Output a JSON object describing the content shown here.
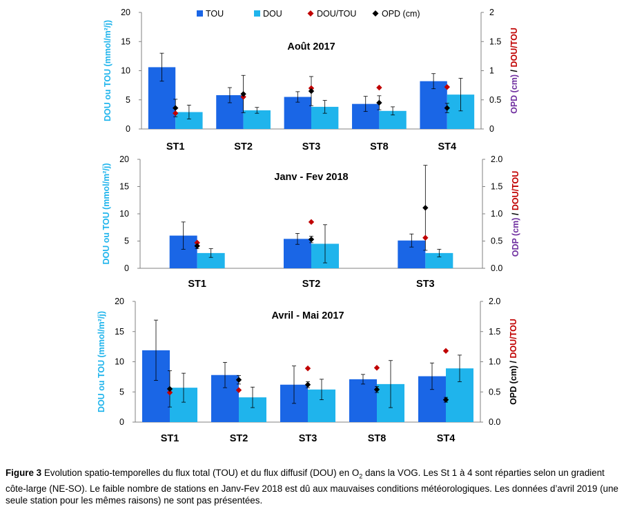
{
  "legend": [
    {
      "label": "TOU",
      "kind": "bar",
      "color": "#1a66e6"
    },
    {
      "label": "DOU",
      "kind": "bar",
      "color": "#1fb4ec"
    },
    {
      "label": "DOU/TOU",
      "kind": "diamond",
      "color": "#c00000"
    },
    {
      "label": "OPD (cm)",
      "kind": "diamond",
      "color": "#000000"
    }
  ],
  "chart_data": [
    {
      "type": "bar",
      "title": "Août  2017",
      "categories": [
        "ST1",
        "ST2",
        "ST3",
        "ST8",
        "ST4"
      ],
      "ylim": [
        0,
        20
      ],
      "y_ticks": [
        "0",
        "5",
        "10",
        "15",
        "20"
      ],
      "y2lim": [
        0,
        2
      ],
      "y2_ticks": [
        "0",
        "0.5",
        "1",
        "1.5",
        "2"
      ],
      "ylabel": {
        "blue1": "DOU",
        "mid": " ou ",
        "blue2": "TOU",
        "rest": " (mmol/m²/j)"
      },
      "y2label": {
        "purple": "OPD (cm)",
        "sep": "   /   ",
        "red": "DOU/TOU"
      },
      "series": [
        {
          "name": "TOU",
          "values": [
            10.6,
            5.8,
            5.5,
            4.3,
            8.2
          ],
          "errors": [
            2.4,
            1.3,
            0.9,
            1.3,
            1.3
          ]
        },
        {
          "name": "DOU",
          "values": [
            2.9,
            3.2,
            3.8,
            3.1,
            5.9
          ],
          "errors": [
            1.2,
            0.5,
            1.1,
            0.7,
            2.8
          ]
        },
        {
          "name": "DOU/TOU",
          "axis": "right",
          "values": [
            0.27,
            0.55,
            0.7,
            0.71,
            0.72
          ]
        },
        {
          "name": "OPD (cm)",
          "axis": "right",
          "values": [
            0.36,
            0.6,
            0.65,
            0.45,
            0.36
          ],
          "errors": [
            0.15,
            0.32,
            0.25,
            0.12,
            0.08
          ]
        }
      ]
    },
    {
      "type": "bar",
      "title": "Janv - Fev 2018",
      "categories": [
        "ST1",
        "ST2",
        "ST3"
      ],
      "ylim": [
        0,
        20
      ],
      "y_ticks": [
        "0",
        "5",
        "10",
        "15",
        "20"
      ],
      "y2lim": [
        0,
        2
      ],
      "y2_ticks": [
        "0.0",
        "0.5",
        "1.0",
        "1.5",
        "2.0"
      ],
      "ylabel": {
        "blue1": "DOU",
        "mid": " ou ",
        "blue2": "TOU",
        "rest": " (mmol/m²/j)"
      },
      "y2label": {
        "purple": "ODP (cm)",
        "sep": "   /   ",
        "red": "DOU/TOU"
      },
      "series": [
        {
          "name": "TOU",
          "values": [
            6.0,
            5.4,
            5.1
          ],
          "errors": [
            2.5,
            1.0,
            1.2
          ]
        },
        {
          "name": "DOU",
          "values": [
            2.8,
            4.5,
            2.8
          ],
          "errors": [
            0.8,
            3.5,
            0.7
          ]
        },
        {
          "name": "DOU/TOU",
          "axis": "right",
          "values": [
            0.47,
            0.85,
            0.56
          ]
        },
        {
          "name": "OPD (cm)",
          "axis": "right",
          "values": [
            0.41,
            0.53,
            1.11
          ],
          "errors": [
            0.05,
            0.06,
            0.78
          ]
        }
      ]
    },
    {
      "type": "bar",
      "title": "Avril - Mai  2017",
      "categories": [
        "ST1",
        "ST2",
        "ST3",
        "ST8",
        "ST4"
      ],
      "ylim": [
        0,
        20
      ],
      "y_ticks": [
        "0",
        "5",
        "10",
        "15",
        "20"
      ],
      "y2lim": [
        0,
        2
      ],
      "y2_ticks": [
        "0.0",
        "0.5",
        "1.0",
        "1.5",
        "2.0"
      ],
      "ylabel": {
        "blue1": "DOU",
        "mid": " ou ",
        "blue2": "TOU",
        "rest": " (mmol/m²/j)"
      },
      "y2label": {
        "black": "OPD (cm) / ",
        "red": "DOU/TOU"
      },
      "series": [
        {
          "name": "TOU",
          "values": [
            11.9,
            7.8,
            6.2,
            7.1,
            7.6
          ],
          "errors": [
            5.0,
            2.1,
            3.1,
            0.8,
            2.2
          ]
        },
        {
          "name": "DOU",
          "values": [
            5.7,
            4.1,
            5.4,
            6.3,
            8.9
          ],
          "errors": [
            2.4,
            1.7,
            1.7,
            3.9,
            2.2
          ]
        },
        {
          "name": "DOU/TOU",
          "axis": "right",
          "values": [
            0.49,
            0.53,
            0.89,
            0.9,
            1.18
          ]
        },
        {
          "name": "OPD (cm)",
          "axis": "right",
          "values": [
            0.55,
            0.7,
            0.62,
            0.54,
            0.37
          ],
          "errors": [
            0.3,
            0.07,
            0.05,
            0.05,
            0.04
          ]
        }
      ]
    }
  ],
  "caption": {
    "label": "Figure 3",
    "text_before": "  Evolution spatio-temporelles du flux total (TOU) et du flux diffusif (DOU) en O",
    "subscript": "2",
    "text_after": " dans la VOG. Les St 1 à 4 sont réparties selon un gradient côte-large (NE-SO). Le faible nombre de stations en Janv-Fev 2018 est dû aux mauvaises conditions météorologiques. Les données d’avril 2019 (une seule station pour les mêmes raisons) ne sont pas présentées."
  }
}
